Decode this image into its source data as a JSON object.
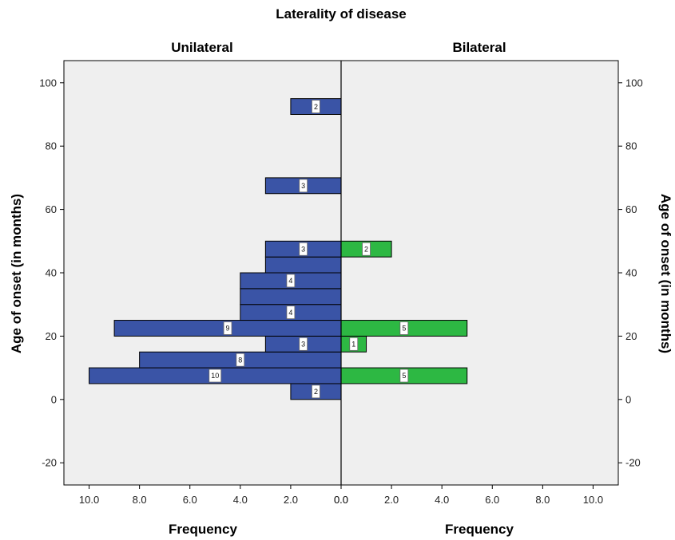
{
  "chart_data": {
    "type": "bar",
    "title": "Laterality of disease",
    "panels": [
      {
        "name": "Unilateral",
        "color": "#3A54A6"
      },
      {
        "name": "Bilateral",
        "color": "#2DB843"
      }
    ],
    "xlabel": "Frequency",
    "ylabel": "Age of onset (in months)",
    "x_ticks": [
      "10.0",
      "8.0",
      "6.0",
      "4.0",
      "2.0",
      "0.0"
    ],
    "x_ticks_right": [
      "0.0",
      "2.0",
      "4.0",
      "6.0",
      "8.0",
      "10.0"
    ],
    "y_ticks": [
      "-20",
      "0",
      "20",
      "40",
      "60",
      "80",
      "100"
    ],
    "xlim": [
      0,
      11
    ],
    "ylim": [
      -27,
      107
    ],
    "bin_width": 5,
    "series": [
      {
        "name": "Unilateral",
        "bins": [
          {
            "start": 0,
            "end": 5,
            "value": 2,
            "label": "2"
          },
          {
            "start": 5,
            "end": 10,
            "value": 10,
            "label": "10"
          },
          {
            "start": 10,
            "end": 15,
            "value": 8,
            "label": "8"
          },
          {
            "start": 15,
            "end": 20,
            "value": 3,
            "label": "3"
          },
          {
            "start": 20,
            "end": 25,
            "value": 9,
            "label": "9"
          },
          {
            "start": 25,
            "end": 30,
            "value": 4,
            "label": "4"
          },
          {
            "start": 30,
            "end": 35,
            "value": 4,
            "label": ""
          },
          {
            "start": 35,
            "end": 40,
            "value": 4,
            "label": "4"
          },
          {
            "start": 40,
            "end": 45,
            "value": 3,
            "label": ""
          },
          {
            "start": 45,
            "end": 50,
            "value": 3,
            "label": "3"
          },
          {
            "start": 65,
            "end": 70,
            "value": 3,
            "label": "3"
          },
          {
            "start": 90,
            "end": 95,
            "value": 2,
            "label": "2"
          }
        ]
      },
      {
        "name": "Bilateral",
        "bins": [
          {
            "start": 5,
            "end": 10,
            "value": 5,
            "label": "5"
          },
          {
            "start": 15,
            "end": 20,
            "value": 1,
            "label": "1"
          },
          {
            "start": 20,
            "end": 25,
            "value": 5,
            "label": "5"
          },
          {
            "start": 45,
            "end": 50,
            "value": 2,
            "label": "2"
          }
        ]
      }
    ],
    "grid": false,
    "legend": "none",
    "background_color": "#EFEFEF"
  }
}
